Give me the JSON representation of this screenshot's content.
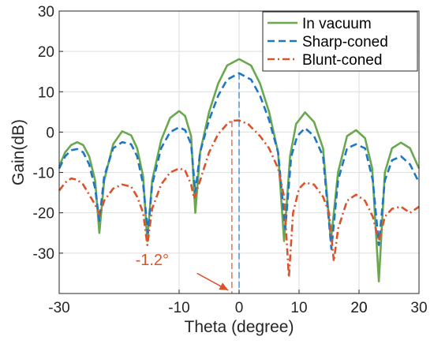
{
  "chart_data": {
    "type": "line",
    "xlabel": "Theta (degree)",
    "ylabel": "Gain(dB)",
    "xlim": [
      -30,
      30
    ],
    "ylim": [
      -40,
      30
    ],
    "x_ticks": [
      -30,
      20,
      -10,
      0,
      10,
      20,
      30
    ],
    "x_tick_labels": [
      "-30",
      "20",
      "-10",
      "0",
      "10",
      "20",
      "30"
    ],
    "y_ticks": [
      30,
      20,
      10,
      0,
      -10,
      -20,
      -30
    ],
    "y_tick_labels": [
      "30",
      "20",
      "10",
      "0",
      "-10",
      "-20",
      "-30"
    ],
    "grid": true,
    "legend_position": "top-right",
    "series": [
      {
        "name": "In vacuum",
        "color": "#6aa84f",
        "style": "solid",
        "points": [
          [
            -30,
            -8.5
          ],
          [
            -29,
            -5
          ],
          [
            -28,
            -3.2
          ],
          [
            -27,
            -2.5
          ],
          [
            -26,
            -3.2
          ],
          [
            -25,
            -6
          ],
          [
            -24,
            -12
          ],
          [
            -23.3,
            -25
          ],
          [
            -22.5,
            -12
          ],
          [
            -21,
            -3
          ],
          [
            -19.5,
            0.2
          ],
          [
            -18,
            -0.8
          ],
          [
            -17,
            -4
          ],
          [
            -16,
            -11
          ],
          [
            -15.3,
            -27
          ],
          [
            -14.5,
            -12
          ],
          [
            -13,
            -2
          ],
          [
            -11.5,
            3.5
          ],
          [
            -10,
            5.2
          ],
          [
            -9,
            4
          ],
          [
            -8,
            -1
          ],
          [
            -7.3,
            -20
          ],
          [
            -6.5,
            -5
          ],
          [
            -5,
            5
          ],
          [
            -3.5,
            12
          ],
          [
            -2,
            16.5
          ],
          [
            0,
            18.1
          ],
          [
            2,
            16.5
          ],
          [
            3.5,
            12
          ],
          [
            5,
            5
          ],
          [
            6.5,
            -5
          ],
          [
            7.5,
            -27
          ],
          [
            8.5,
            -6
          ],
          [
            9.5,
            2
          ],
          [
            11,
            4.9
          ],
          [
            12.5,
            2.5
          ],
          [
            14,
            -4
          ],
          [
            15.3,
            -27
          ],
          [
            16.5,
            -10
          ],
          [
            18,
            -1
          ],
          [
            19.5,
            0.5
          ],
          [
            21,
            -1.5
          ],
          [
            22.2,
            -9
          ],
          [
            23.3,
            -37
          ],
          [
            24.3,
            -10
          ],
          [
            25.5,
            -4
          ],
          [
            27,
            -2.6
          ],
          [
            28.5,
            -4
          ],
          [
            30,
            -9
          ]
        ]
      },
      {
        "name": "Sharp-coned",
        "color": "#1f77c4",
        "style": "dashed",
        "points": [
          [
            -30,
            -9
          ],
          [
            -29,
            -6
          ],
          [
            -28,
            -4.5
          ],
          [
            -27,
            -4.2
          ],
          [
            -26,
            -5
          ],
          [
            -25,
            -8
          ],
          [
            -24,
            -14
          ],
          [
            -23.3,
            -22
          ],
          [
            -22.5,
            -11
          ],
          [
            -21,
            -4
          ],
          [
            -19.5,
            -2.5
          ],
          [
            -18,
            -3
          ],
          [
            -17,
            -6
          ],
          [
            -16,
            -13
          ],
          [
            -15.2,
            -25
          ],
          [
            -14.5,
            -13
          ],
          [
            -13,
            -4
          ],
          [
            -11.5,
            0
          ],
          [
            -10,
            1.2
          ],
          [
            -9,
            0.5
          ],
          [
            -8,
            -3
          ],
          [
            -7.3,
            -15
          ],
          [
            -6.5,
            -5
          ],
          [
            -5,
            3
          ],
          [
            -3.5,
            9
          ],
          [
            -2,
            13
          ],
          [
            0,
            14.6
          ],
          [
            2,
            13
          ],
          [
            3.5,
            9
          ],
          [
            5,
            3
          ],
          [
            6.5,
            -5
          ],
          [
            7.7,
            -24
          ],
          [
            8.7,
            -6
          ],
          [
            9.7,
            -1
          ],
          [
            11,
            1
          ],
          [
            12.5,
            -1
          ],
          [
            14,
            -6
          ],
          [
            15.4,
            -29
          ],
          [
            16.5,
            -12
          ],
          [
            18,
            -4
          ],
          [
            19.5,
            -3
          ],
          [
            21,
            -4
          ],
          [
            22.3,
            -12
          ],
          [
            23.3,
            -28
          ],
          [
            24.3,
            -12
          ],
          [
            25.5,
            -7
          ],
          [
            27,
            -6
          ],
          [
            28.5,
            -8
          ],
          [
            30,
            -12.5
          ]
        ]
      },
      {
        "name": "Blunt-coned",
        "color": "#d9542b",
        "style": "dashdot",
        "points": [
          [
            -30,
            -14.5
          ],
          [
            -29,
            -12.5
          ],
          [
            -28,
            -11.5
          ],
          [
            -27,
            -11.8
          ],
          [
            -26,
            -13
          ],
          [
            -25,
            -15.5
          ],
          [
            -24,
            -18
          ],
          [
            -23.2,
            -20.5
          ],
          [
            -22.5,
            -17
          ],
          [
            -21,
            -14
          ],
          [
            -19.5,
            -13
          ],
          [
            -18,
            -13.5
          ],
          [
            -17,
            -16
          ],
          [
            -16,
            -20
          ],
          [
            -15.3,
            -28
          ],
          [
            -14.5,
            -19
          ],
          [
            -13,
            -13
          ],
          [
            -11.5,
            -10
          ],
          [
            -10,
            -9
          ],
          [
            -9,
            -9.5
          ],
          [
            -8,
            -13
          ],
          [
            -7.5,
            -16.5
          ],
          [
            -6.5,
            -12
          ],
          [
            -5,
            -5
          ],
          [
            -3.5,
            -0.5
          ],
          [
            -2,
            2
          ],
          [
            -1.2,
            2.8
          ],
          [
            0,
            2.9
          ],
          [
            1.5,
            2
          ],
          [
            3.5,
            -1
          ],
          [
            5,
            -4
          ],
          [
            6.5,
            -9
          ],
          [
            7.5,
            -16
          ],
          [
            8.3,
            -36
          ],
          [
            9,
            -20
          ],
          [
            10,
            -14
          ],
          [
            11,
            -12.5
          ],
          [
            12.5,
            -13
          ],
          [
            14,
            -16
          ],
          [
            15,
            -20
          ],
          [
            15.8,
            -32
          ],
          [
            16.5,
            -24
          ],
          [
            18,
            -17
          ],
          [
            19.5,
            -15.5
          ],
          [
            21,
            -17
          ],
          [
            22.3,
            -21
          ],
          [
            23.3,
            -27
          ],
          [
            24.3,
            -21
          ],
          [
            25.5,
            -19
          ],
          [
            27,
            -18.5
          ],
          [
            28.5,
            -20
          ],
          [
            29.5,
            -19
          ],
          [
            30,
            -18.5
          ]
        ]
      }
    ],
    "peak_markers": [
      {
        "x": -1.2,
        "y_top": 2.8,
        "color": "#d9542b"
      },
      {
        "x": 0,
        "y_top": 14.6,
        "color": "#1f77c4"
      }
    ],
    "annotation": {
      "text": "-1.2°",
      "color": "#d9542b",
      "arrow_from": [
        -7,
        -35
      ],
      "arrow_to": [
        -1.8,
        -39.2
      ]
    }
  }
}
